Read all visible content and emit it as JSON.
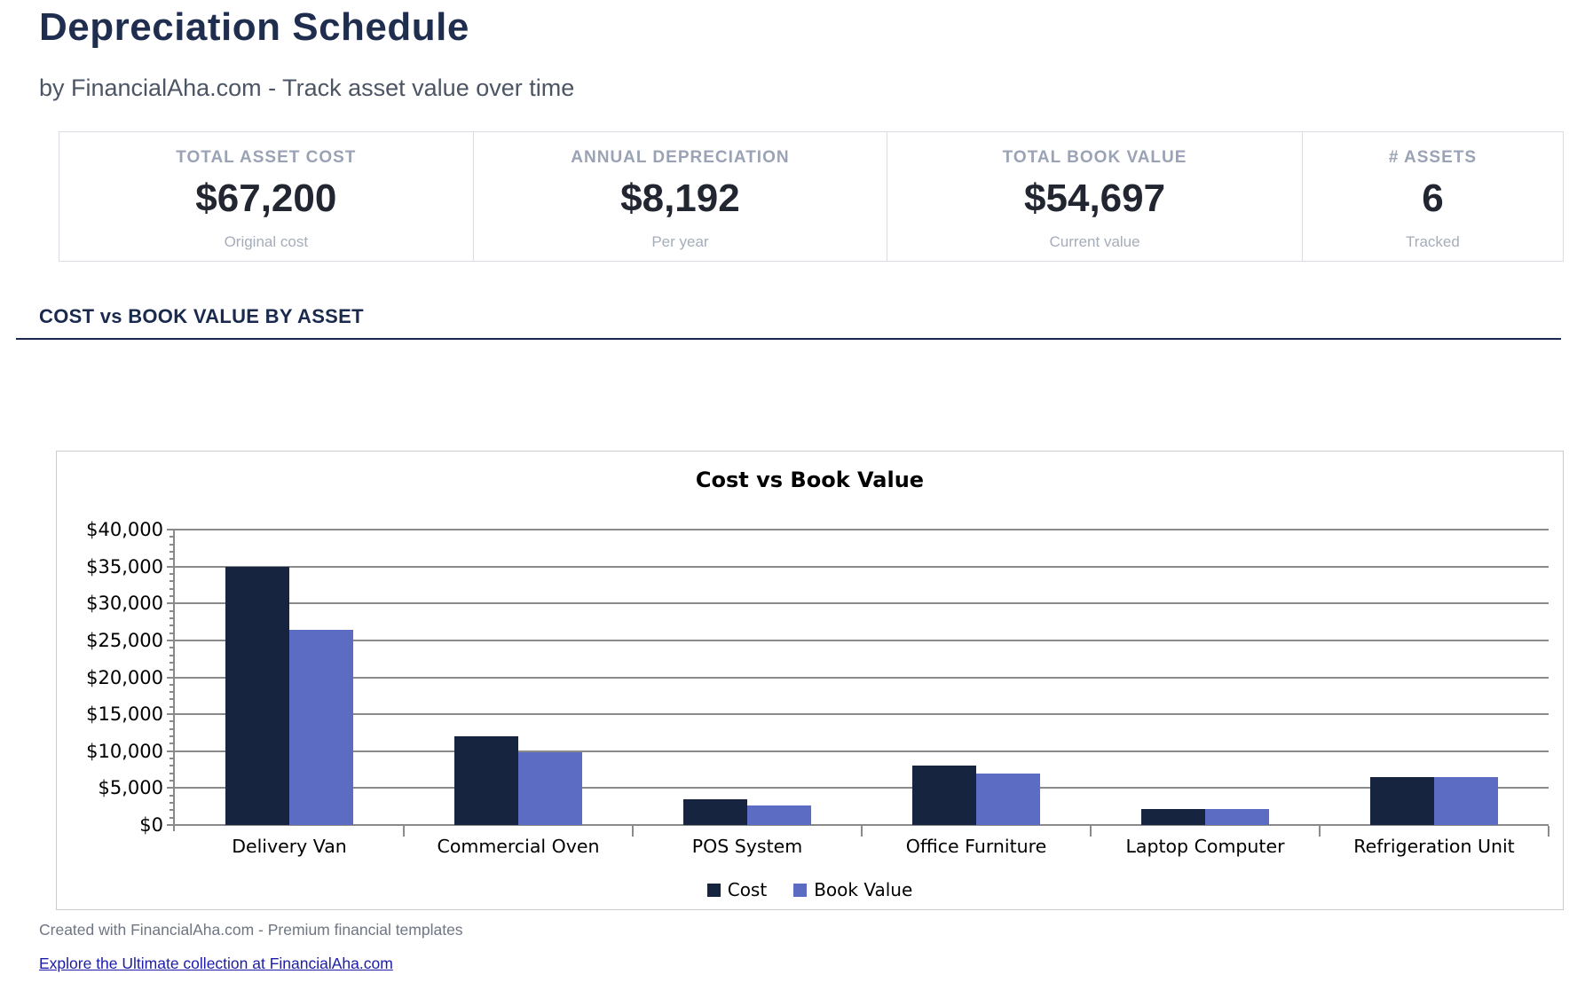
{
  "page": {
    "title": "Depreciation Schedule",
    "subtitle": "by FinancialAha.com - Track asset value over time",
    "section_title": "COST vs BOOK VALUE BY ASSET",
    "footer_note": "Created with FinancialAha.com - Premium financial templates",
    "footer_link": "Explore the Ultimate collection at FinancialAha.com"
  },
  "stats": [
    {
      "label": "TOTAL ASSET COST",
      "value": "$67,200",
      "sub": "Original cost"
    },
    {
      "label": "ANNUAL DEPRECIATION",
      "value": "$8,192",
      "sub": "Per year"
    },
    {
      "label": "TOTAL BOOK VALUE",
      "value": "$54,697",
      "sub": "Current value"
    },
    {
      "label": "# ASSETS",
      "value": "6",
      "sub": "Tracked"
    }
  ],
  "colors": {
    "heading_navy": "#1f2e4e",
    "section_navy": "#192a4e",
    "grid_gray": "#8a8a8a",
    "cost_bar": "#162440",
    "book_value_bar": "#5d6cc3",
    "link_blue": "#1c1ca9"
  },
  "chart_data": {
    "type": "bar",
    "title": "Cost vs Book Value",
    "categories": [
      "Delivery Van",
      "Commercial Oven",
      "POS System",
      "Office Furniture",
      "Laptop Computer",
      "Refrigeration Unit"
    ],
    "series": [
      {
        "name": "Cost",
        "color": "#162440",
        "values": [
          35000,
          12000,
          3500,
          8000,
          2200,
          6500
        ]
      },
      {
        "name": "Book Value",
        "color": "#5d6cc3",
        "values": [
          26447,
          9850,
          2700,
          7000,
          2200,
          6500
        ]
      }
    ],
    "xlabel": "",
    "ylabel": "",
    "ylim": [
      0,
      40000
    ],
    "ytick_step": 5000,
    "yminor_step": 1000,
    "ytick_labels": [
      "$0",
      "$5,000",
      "$10,000",
      "$15,000",
      "$20,000",
      "$25,000",
      "$30,000",
      "$35,000",
      "$40,000"
    ],
    "grid": "horizontal",
    "legend_position": "bottom"
  }
}
